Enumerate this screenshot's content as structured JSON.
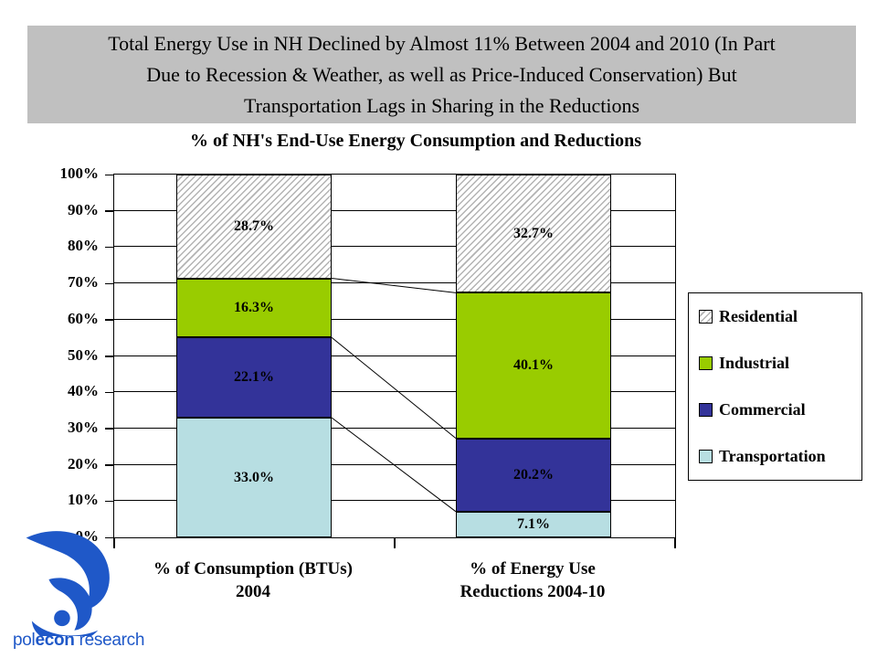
{
  "slide": {
    "title": "Total Energy Use in NH Declined by Almost 11% Between 2004 and 2010 (In Part Due to Recession & Weather, as well as Price-Induced Conservation) But Transportation Lags in Sharing in the Reductions",
    "title_lines": [
      "Total Energy Use in NH Declined by Almost 11% Between 2004 and 2010 (In Part",
      "Due to Recession & Weather, as well as Price-Induced Conservation) But",
      "Transportation Lags in Sharing in the Reductions"
    ],
    "title_bg_color": "#c0c0c0"
  },
  "chart_data": {
    "type": "bar",
    "stacked": true,
    "title": "% of NH's End-Use Energy Consumption and Reductions",
    "categories": [
      "% of Consumption (BTUs) 2004",
      "% of Energy Use Reductions 2004-10"
    ],
    "category_lines": [
      [
        "% of Consumption (BTUs)",
        "2004"
      ],
      [
        "% of Energy Use",
        "Reductions 2004-10"
      ]
    ],
    "series": [
      {
        "name": "Transportation",
        "values": [
          33.0,
          7.1
        ],
        "color": "#b7dee2",
        "pattern": "solid"
      },
      {
        "name": "Commercial",
        "values": [
          22.1,
          20.2
        ],
        "color": "#333399",
        "pattern": "solid"
      },
      {
        "name": "Industrial",
        "values": [
          16.3,
          40.1
        ],
        "color": "#99cc00",
        "pattern": "solid"
      },
      {
        "name": "Residential",
        "values": [
          28.7,
          32.7
        ],
        "color": "#ffffff",
        "pattern": "diagonal-hatch",
        "hatch_line_color": "#b3b3b3"
      }
    ],
    "data_labels": [
      "33.0%",
      "22.1%",
      "16.3%",
      "28.7%",
      "7.1%",
      "20.2%",
      "40.1%",
      "32.7%"
    ],
    "y_axis": {
      "min": 0,
      "max": 100,
      "step": 10,
      "tick_suffix": "%"
    },
    "ylim": [
      0,
      100
    ],
    "grid": true,
    "series_connector_lines": true,
    "legend": {
      "position": "right",
      "items": [
        "Residential",
        "Industrial",
        "Commercial",
        "Transportation"
      ]
    }
  },
  "logo": {
    "text_pre": "pol",
    "text_mid": "econ",
    "text_post": " research",
    "color": "#1f58c8"
  }
}
